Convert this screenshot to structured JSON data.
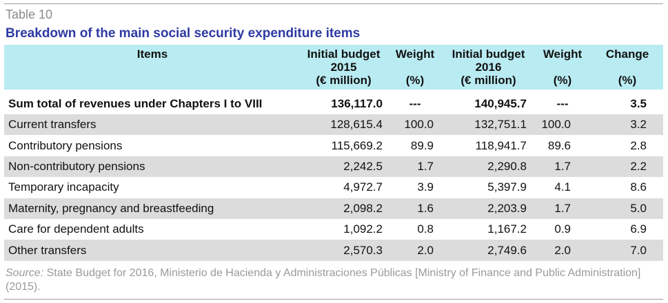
{
  "table_label": "Table 10",
  "title": "Breakdown of the main social security expenditure items",
  "headers": {
    "items": "Items",
    "budget2015": [
      "Initial budget",
      "2015",
      "(€ million)"
    ],
    "weight2015": [
      "Weight",
      "(%)"
    ],
    "budget2016": [
      "Initial budget",
      "2016",
      "(€ million)"
    ],
    "weight2016": [
      "Weight",
      "(%)"
    ],
    "change": [
      "Change",
      "(%)"
    ]
  },
  "total_row": {
    "item": "Sum total of revenues under Chapters I to VIII",
    "budget2015": "136,117.0",
    "weight2015": "---",
    "budget2016": "140,945.7",
    "weight2016": "---",
    "change": "3.5"
  },
  "rows": [
    {
      "item": "Current transfers",
      "budget2015": "128,615.4",
      "weight2015": "100.0",
      "budget2016": "132,751.1",
      "weight2016": "100.0",
      "change": "3.2"
    },
    {
      "item": "Contributory pensions",
      "budget2015": "115,669.2",
      "weight2015": "89.9",
      "budget2016": "118,941.7",
      "weight2016": "89.6",
      "change": "2.8"
    },
    {
      "item": "Non-contributory pensions",
      "budget2015": "2,242.5",
      "weight2015": "1.7",
      "budget2016": "2,290.8",
      "weight2016": "1.7",
      "change": "2.2"
    },
    {
      "item": "Temporary incapacity",
      "budget2015": "4,972.7",
      "weight2015": "3.9",
      "budget2016": "5,397.9",
      "weight2016": "4.1",
      "change": "8.6"
    },
    {
      "item": "Maternity, pregnancy and breastfeeding",
      "budget2015": "2,098.2",
      "weight2015": "1.6",
      "budget2016": "2,203.9",
      "weight2016": "1.7",
      "change": "5.0"
    },
    {
      "item": "Care for dependent adults",
      "budget2015": "1,092.2",
      "weight2015": "0.8",
      "budget2016": "1,167.2",
      "weight2016": "0.9",
      "change": "6.9"
    },
    {
      "item": "Other transfers",
      "budget2015": "2,570.3",
      "weight2015": "2.0",
      "budget2016": "2,749.6",
      "weight2016": "2.0",
      "change": "7.0"
    }
  ],
  "source": {
    "label": "Source:",
    "text": " State Budget for 2016, Ministerio de Hacienda y Administraciones Públicas [Ministry of Finance and Public Administration] (2015)."
  },
  "colors": {
    "header_bg": "#b9ebf2",
    "title": "#2e3aa3",
    "shaded_row": "#dcdcdc",
    "muted_text": "#8a8a8a"
  }
}
